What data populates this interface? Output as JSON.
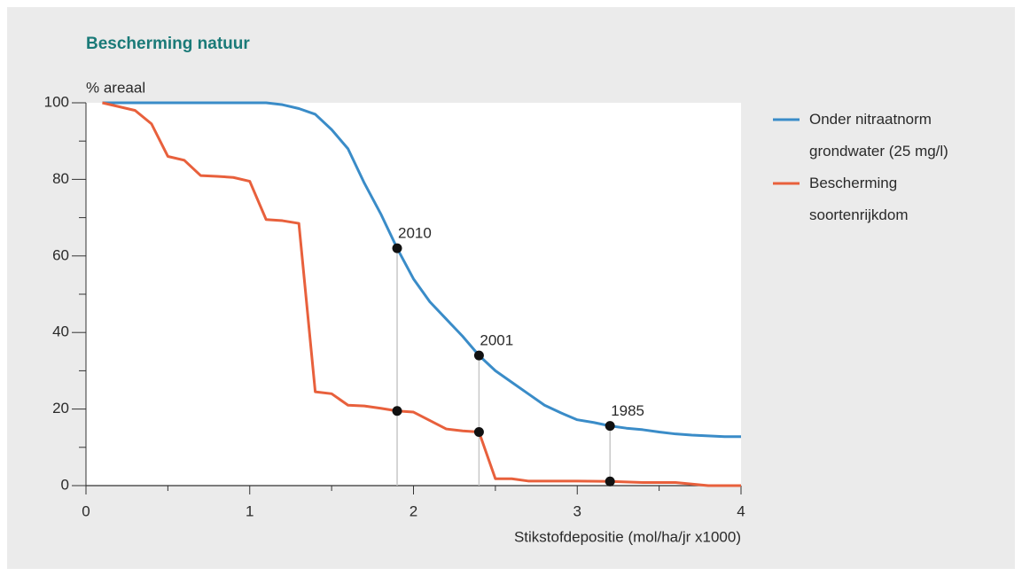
{
  "chart_data": {
    "type": "line",
    "title": "Bescherming natuur",
    "ylabel": "% areaal",
    "xlabel": "Stikstofdepositie (mol/ha/jr x1000)",
    "xlim": [
      0,
      4
    ],
    "xticks": [
      0,
      1,
      2,
      3,
      4
    ],
    "xminor": [
      0.5,
      1.5,
      2.5,
      3.5
    ],
    "ylim": [
      0,
      100
    ],
    "yticks": [
      0,
      20,
      40,
      60,
      80,
      100
    ],
    "yminor": [
      10,
      30,
      50,
      70,
      90
    ],
    "series": [
      {
        "name": "Onder nitraatnorm grondwater (25 mg/l)",
        "color": "#3a8cc8",
        "x": [
          0.1,
          1.1,
          1.2,
          1.3,
          1.4,
          1.5,
          1.6,
          1.7,
          1.8,
          1.9,
          2.0,
          2.1,
          2.2,
          2.3,
          2.4,
          2.5,
          2.6,
          2.7,
          2.8,
          2.9,
          3.0,
          3.1,
          3.2,
          3.3,
          3.4,
          3.5,
          3.6,
          3.7,
          3.8,
          3.9,
          4.0
        ],
        "values": [
          100,
          100,
          99.5,
          98.5,
          97,
          93,
          88,
          79,
          71,
          62,
          54,
          48,
          43.5,
          39,
          34,
          30,
          27,
          24,
          21,
          19,
          17.2,
          16.5,
          15.6,
          15,
          14.6,
          14,
          13.5,
          13.2,
          13,
          12.8,
          12.8
        ]
      },
      {
        "name": "Bescherming soortenrijkdom",
        "color": "#e8603c",
        "x": [
          0.1,
          0.3,
          0.4,
          0.5,
          0.6,
          0.7,
          0.8,
          0.9,
          1.0,
          1.1,
          1.2,
          1.3,
          1.4,
          1.5,
          1.6,
          1.7,
          1.8,
          1.9,
          2.0,
          2.1,
          2.2,
          2.3,
          2.4,
          2.5,
          2.6,
          2.7,
          2.8,
          3.0,
          3.2,
          3.4,
          3.6,
          3.8,
          4.0
        ],
        "values": [
          100,
          98,
          94.5,
          86,
          85,
          81,
          80.8,
          80.5,
          79.5,
          69.5,
          69.2,
          68.5,
          24.5,
          24,
          21,
          20.8,
          20.2,
          19.5,
          19.2,
          17,
          14.8,
          14.3,
          14,
          1.8,
          1.8,
          1.2,
          1.2,
          1.2,
          1.1,
          0.8,
          0.8,
          0,
          0
        ]
      }
    ],
    "markers": [
      {
        "label": "2010",
        "x": 1.9,
        "y_top": 62,
        "y_bottom": 19.5
      },
      {
        "label": "2001",
        "x": 2.4,
        "y_top": 34,
        "y_bottom": 14
      },
      {
        "label": "1985",
        "x": 3.2,
        "y_top": 15.6,
        "y_bottom": 1.1
      }
    ]
  }
}
